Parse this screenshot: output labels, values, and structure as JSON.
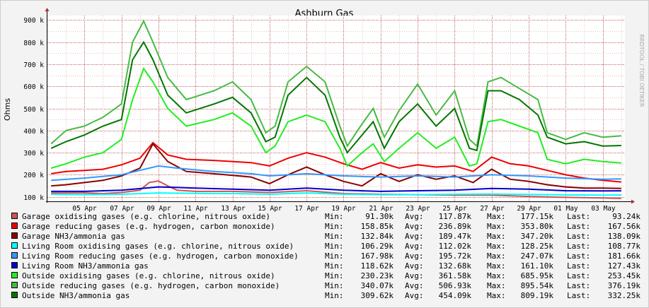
{
  "chart_data": {
    "type": "line",
    "title": "Ashburn Gas",
    "ylabel": "Ohms",
    "watermark": "RRDTOOL / TOBI OETIKER",
    "ylim": [
      80000,
      920000
    ],
    "yticks": [
      100000,
      200000,
      300000,
      400000,
      500000,
      600000,
      700000,
      800000,
      900000
    ],
    "ytick_labels": [
      "100 k",
      "200 k",
      "300 k",
      "400 k",
      "500 k",
      "600 k",
      "700 k",
      "800 k",
      "900 k"
    ],
    "xlim": [
      3,
      34.2
    ],
    "xticks": [
      5,
      7,
      9,
      11,
      13,
      15,
      17,
      19,
      21,
      23,
      25,
      27,
      29,
      31,
      33
    ],
    "xtick_labels": [
      "05 Apr",
      "07 Apr",
      "09 Apr",
      "11 Apr",
      "13 Apr",
      "15 Apr",
      "17 Apr",
      "19 Apr",
      "21 Apr",
      "23 Apr",
      "25 Apr",
      "27 Apr",
      "29 Apr",
      "01 May",
      "03 May"
    ],
    "grid": true,
    "legend_position": "bottom",
    "stat_labels": {
      "min": "Min:",
      "avg": "Avg:",
      "max": "Max:",
      "last": "Last:"
    },
    "series": [
      {
        "name": "Garage oxidising gases (e.g. chlorine, nitrous oxide)",
        "color": "#cc5555",
        "stats": {
          "min": "91.30k",
          "avg": "117.87k",
          "max": "177.15k",
          "last": "93.24k"
        },
        "x": [
          3.2,
          5,
          6,
          7,
          8,
          8.5,
          9,
          9.5,
          10,
          11,
          13,
          15,
          17,
          19,
          21,
          23,
          25,
          27,
          29,
          31,
          33,
          34
        ],
        "values": [
          118000,
          118000,
          115000,
          120000,
          130000,
          165000,
          172000,
          150000,
          130000,
          125000,
          125000,
          120000,
          128000,
          115000,
          112000,
          110000,
          108000,
          108000,
          102000,
          98000,
          95000,
          93240
        ]
      },
      {
        "name": "Garage reducing gases (e.g. hydrogen, carbon monoxide)",
        "color": "#ee0000",
        "stats": {
          "min": "158.85k",
          "avg": "236.89k",
          "max": "353.80k",
          "last": "167.56k"
        },
        "x": [
          3.2,
          4,
          5,
          6,
          7,
          8,
          8.7,
          9.5,
          10.5,
          12,
          14,
          15,
          16,
          17,
          18,
          19,
          20,
          21,
          22,
          23,
          24,
          25,
          26,
          27,
          28,
          29,
          30,
          31,
          32,
          33,
          34
        ],
        "values": [
          205000,
          215000,
          220000,
          225000,
          245000,
          275000,
          345000,
          290000,
          270000,
          265000,
          255000,
          240000,
          275000,
          300000,
          280000,
          250000,
          225000,
          255000,
          230000,
          245000,
          235000,
          240000,
          215000,
          280000,
          250000,
          240000,
          220000,
          200000,
          185000,
          175000,
          167560
        ]
      },
      {
        "name": "Garage NH3/ammonia gas",
        "color": "#880000",
        "stats": {
          "min": "132.84k",
          "avg": "189.47k",
          "max": "347.20k",
          "last": "138.09k"
        },
        "x": [
          3.2,
          4,
          5,
          6,
          7,
          8,
          8.7,
          9.5,
          10.5,
          12,
          14,
          15,
          16,
          17,
          18,
          19,
          20,
          21,
          22,
          23,
          24,
          25,
          26,
          27,
          28,
          29,
          30,
          31,
          32,
          33,
          34
        ],
        "values": [
          150000,
          155000,
          165000,
          175000,
          195000,
          230000,
          340000,
          260000,
          215000,
          205000,
          190000,
          160000,
          200000,
          235000,
          200000,
          170000,
          150000,
          205000,
          170000,
          200000,
          180000,
          195000,
          165000,
          225000,
          180000,
          170000,
          155000,
          145000,
          140000,
          140000,
          138090
        ]
      },
      {
        "name": "Living Room oxidising gases (e.g. chlorine, nitrous oxide)",
        "color": "#00ffff",
        "stats": {
          "min": "106.29k",
          "avg": "112.02k",
          "max": "128.25k",
          "last": "108.77k"
        },
        "x": [
          3.2,
          5,
          7,
          9,
          11,
          13,
          15,
          17,
          19,
          21,
          23,
          25,
          27,
          29,
          31,
          33,
          34
        ],
        "values": [
          112000,
          110000,
          112000,
          118000,
          116000,
          115000,
          112000,
          118000,
          112000,
          110000,
          110000,
          112000,
          113000,
          111000,
          109000,
          108000,
          108770
        ]
      },
      {
        "name": "Living Room reducing gases (e.g. hydrogen, carbon monoxide)",
        "color": "#3399ff",
        "stats": {
          "min": "167.98k",
          "avg": "195.72k",
          "max": "247.07k",
          "last": "181.66k"
        },
        "x": [
          3.2,
          5,
          7,
          9,
          10,
          12,
          14,
          15,
          17,
          19,
          21,
          23,
          25,
          27,
          29,
          31,
          33,
          34
        ],
        "values": [
          175000,
          185000,
          200000,
          240000,
          230000,
          215000,
          205000,
          195000,
          205000,
          195000,
          190000,
          195000,
          190000,
          200000,
          195000,
          185000,
          180000,
          181660
        ]
      },
      {
        "name": "Living Room NH3/ammonia gas",
        "color": "#0000cc",
        "stats": {
          "min": "118.62k",
          "avg": "132.68k",
          "max": "161.10k",
          "last": "127.43k"
        },
        "x": [
          3.2,
          5,
          7,
          9,
          11,
          13,
          15,
          17,
          19,
          21,
          23,
          25,
          27,
          29,
          31,
          33,
          34
        ],
        "values": [
          125000,
          125000,
          130000,
          145000,
          140000,
          135000,
          130000,
          140000,
          130000,
          125000,
          128000,
          130000,
          138000,
          135000,
          128000,
          127000,
          127430
        ]
      },
      {
        "name": "Outside oxidising gases (e.g. chlorine, nitrous oxide)",
        "color": "#22ee22",
        "stats": {
          "min": "230.23k",
          "avg": "361.58k",
          "max": "685.95k",
          "last": "253.45k"
        },
        "x": [
          3.2,
          4,
          5,
          6,
          7,
          7.6,
          8.2,
          8.7,
          9.5,
          10.5,
          12,
          13,
          14,
          14.8,
          15.3,
          16,
          17,
          18,
          18.8,
          19.2,
          20,
          20.6,
          21.2,
          22,
          23,
          24,
          25,
          25.8,
          26.2,
          26.8,
          27.5,
          28.5,
          29.5,
          30,
          31,
          32,
          33,
          34
        ],
        "values": [
          230000,
          250000,
          280000,
          300000,
          360000,
          540000,
          680000,
          620000,
          500000,
          420000,
          450000,
          480000,
          420000,
          300000,
          330000,
          440000,
          470000,
          440000,
          320000,
          240000,
          300000,
          340000,
          260000,
          320000,
          390000,
          320000,
          370000,
          240000,
          250000,
          440000,
          450000,
          420000,
          390000,
          270000,
          250000,
          270000,
          260000,
          253450
        ]
      },
      {
        "name": "Outside reducing gases (e.g. hydrogen, carbon monoxide)",
        "color": "#44bb44",
        "stats": {
          "min": "340.07k",
          "avg": "506.93k",
          "max": "895.54k",
          "last": "376.19k"
        },
        "x": [
          3.2,
          4,
          5,
          6,
          7,
          7.6,
          8.2,
          8.7,
          9.5,
          10.5,
          12,
          13,
          14,
          14.8,
          15.3,
          16,
          17,
          18,
          18.8,
          19.2,
          20,
          20.6,
          21.2,
          22,
          23,
          24,
          25,
          25.8,
          26.2,
          26.8,
          27.5,
          28.5,
          29.5,
          30,
          31,
          32,
          33,
          34
        ],
        "values": [
          340000,
          400000,
          420000,
          460000,
          520000,
          800000,
          895000,
          800000,
          640000,
          540000,
          580000,
          620000,
          540000,
          390000,
          420000,
          620000,
          690000,
          620000,
          420000,
          330000,
          430000,
          500000,
          370000,
          490000,
          610000,
          470000,
          580000,
          360000,
          330000,
          620000,
          640000,
          590000,
          540000,
          390000,
          360000,
          390000,
          370000,
          376190
        ]
      },
      {
        "name": "Outside NH3/ammonia gas",
        "color": "#007700",
        "stats": {
          "min": "309.62k",
          "avg": "454.09k",
          "max": "809.19k",
          "last": "332.25k"
        },
        "x": [
          3.2,
          4,
          5,
          6,
          7,
          7.6,
          8.2,
          8.7,
          9.5,
          10.5,
          12,
          13,
          14,
          14.8,
          15.3,
          16,
          17,
          18,
          18.8,
          19.2,
          20,
          20.6,
          21.2,
          22,
          23,
          24,
          25,
          25.8,
          26.2,
          26.8,
          27.5,
          28.5,
          29.5,
          30,
          31,
          32,
          33,
          34
        ],
        "values": [
          320000,
          350000,
          380000,
          420000,
          450000,
          720000,
          800000,
          720000,
          560000,
          480000,
          520000,
          550000,
          480000,
          350000,
          370000,
          560000,
          640000,
          560000,
          370000,
          300000,
          380000,
          440000,
          320000,
          440000,
          520000,
          420000,
          500000,
          320000,
          310000,
          580000,
          580000,
          540000,
          470000,
          370000,
          340000,
          350000,
          330000,
          332250
        ]
      }
    ]
  }
}
